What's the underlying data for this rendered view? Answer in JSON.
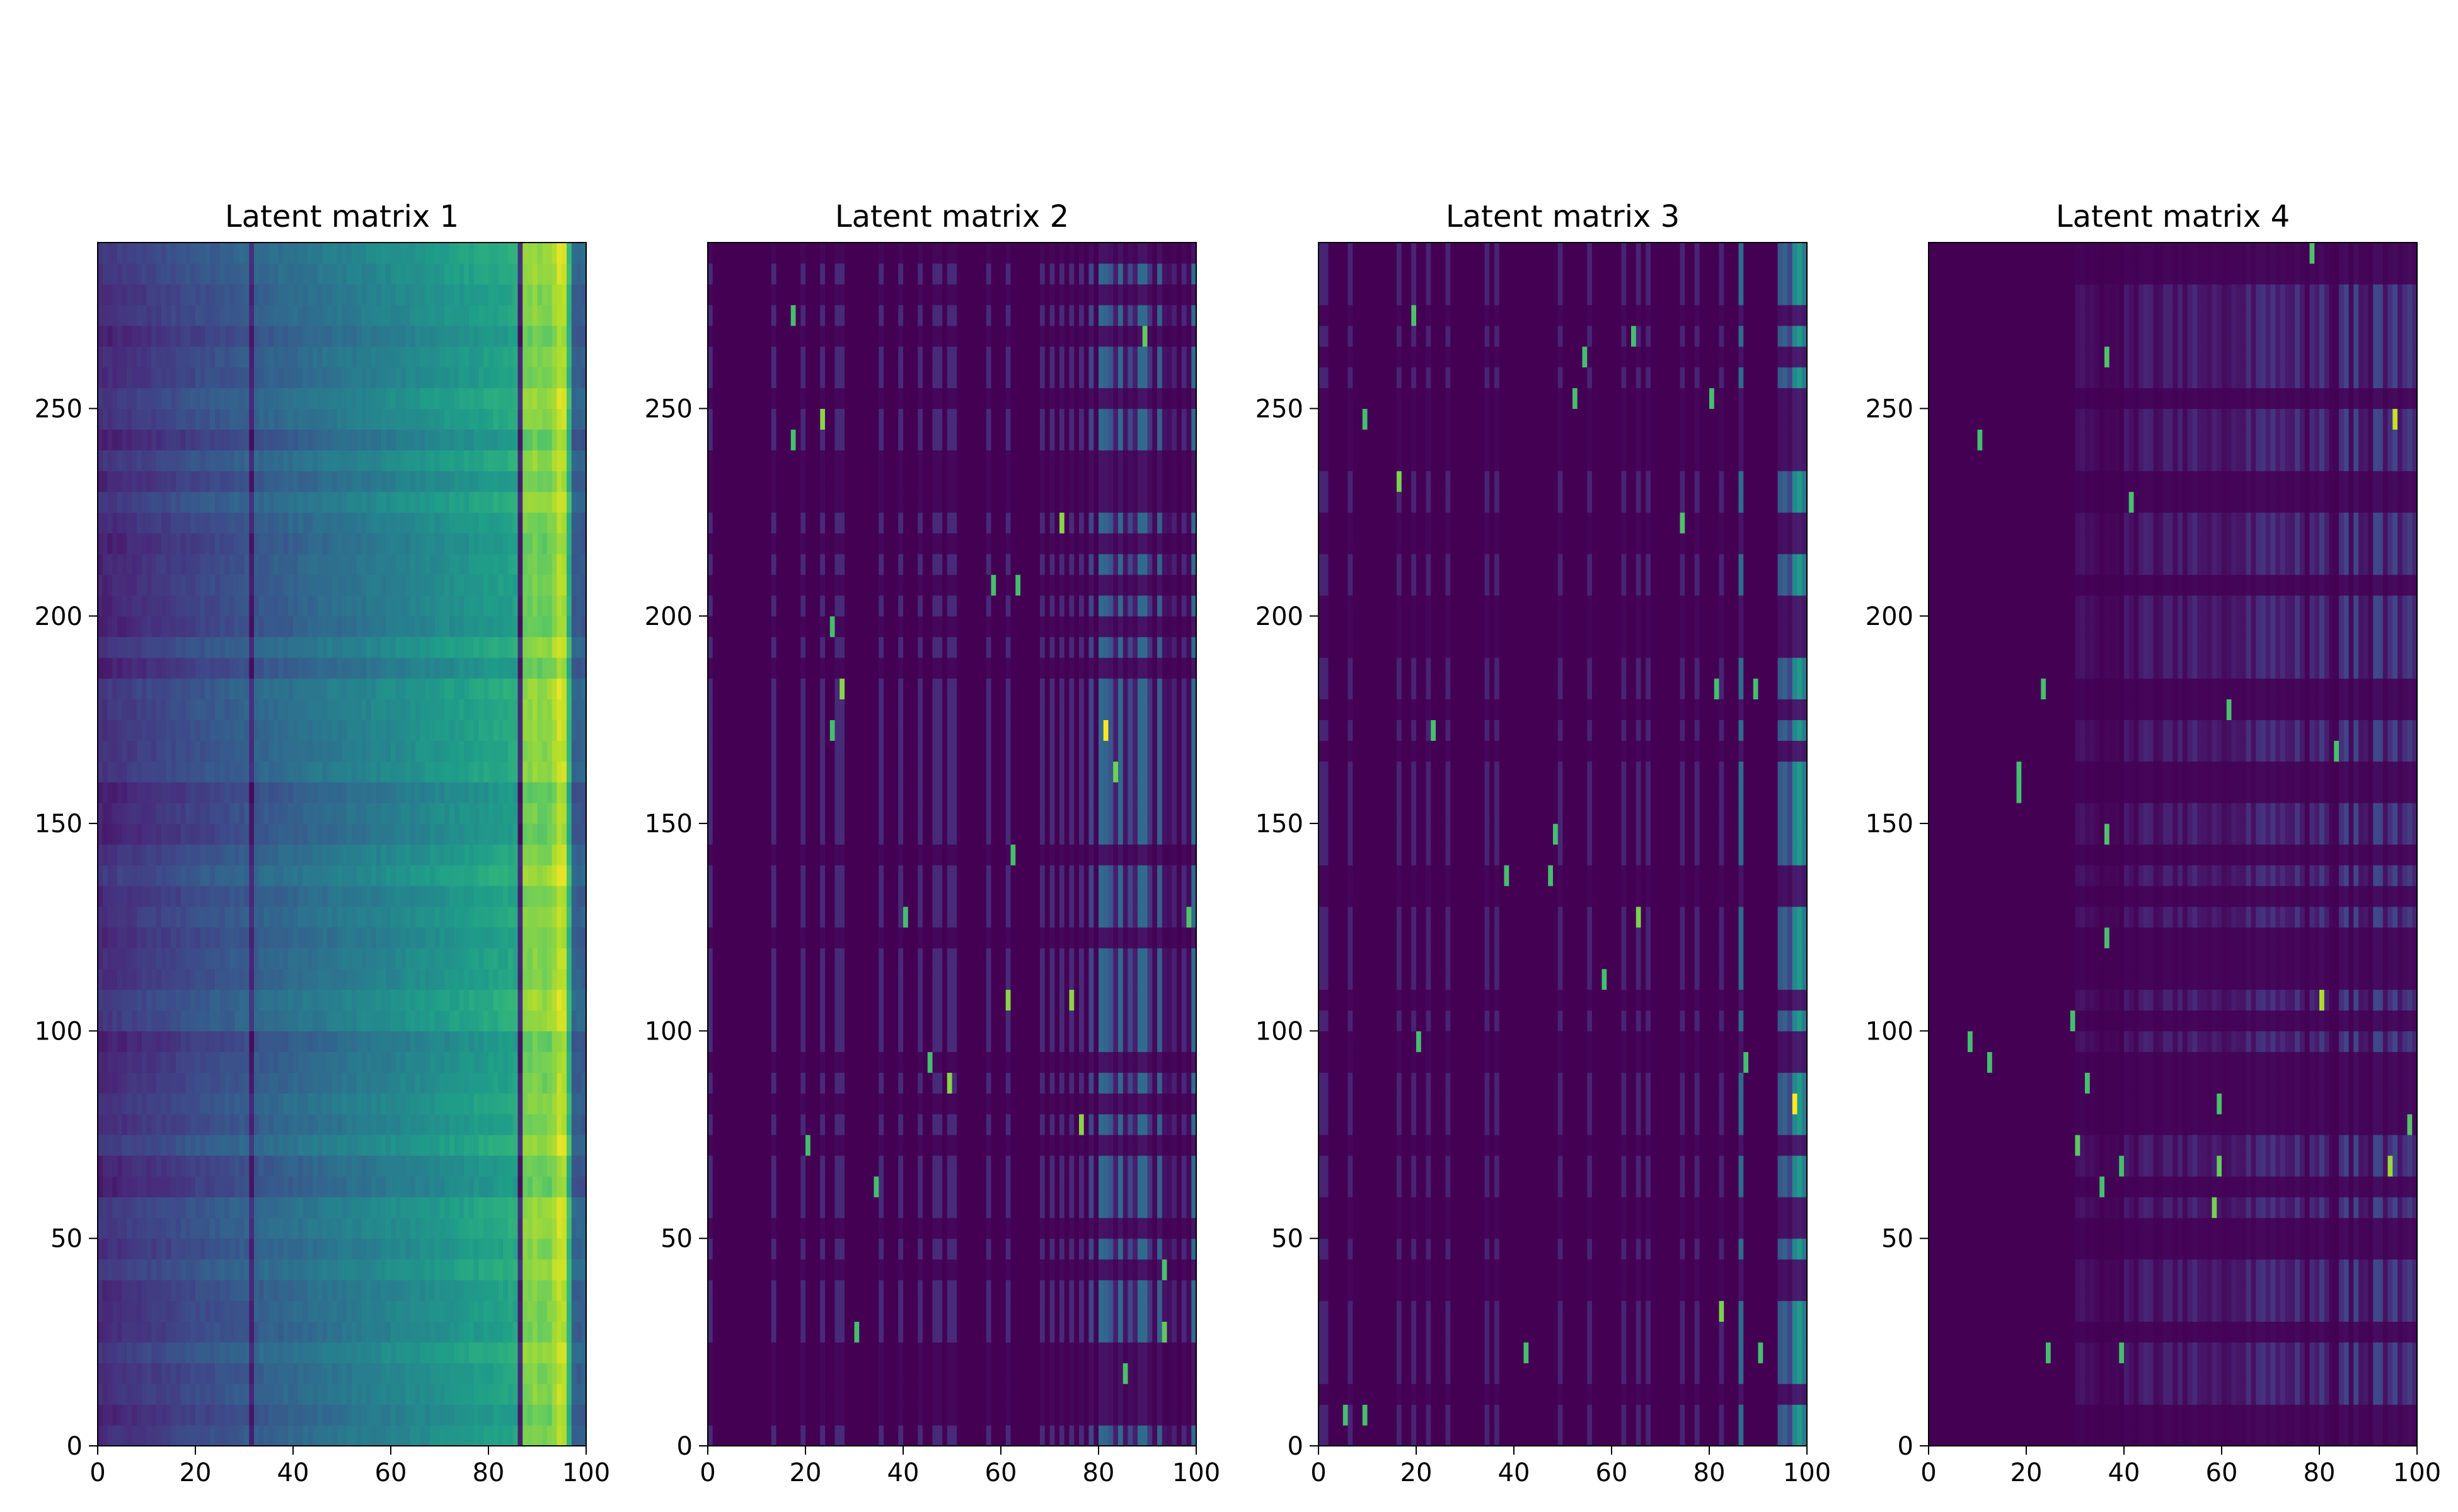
{
  "chart_data": [
    {
      "type": "heatmap",
      "title": "Latent matrix 1",
      "xlim": [
        0,
        100
      ],
      "ylim": [
        0,
        290
      ],
      "xticks": [
        0,
        20,
        40,
        60,
        80,
        100
      ],
      "yticks": [
        0,
        50,
        100,
        150,
        200,
        250
      ],
      "n_cols": 100,
      "n_rows": 290,
      "colormap": "viridis",
      "description_values": "dense matrix; intensity rises from left to right, brightest columns near 88-94, vertical dark lines near columns 31 and 86"
    },
    {
      "type": "heatmap",
      "title": "Latent matrix 2",
      "xlim": [
        0,
        100
      ],
      "ylim": [
        0,
        290
      ],
      "xticks": [
        0,
        20,
        40,
        60,
        80,
        100
      ],
      "yticks": [
        0,
        50,
        100,
        150,
        200,
        250
      ],
      "n_cols": 100,
      "n_rows": 290,
      "colormap": "viridis",
      "description_values": "mostly near zero; sparse activity in columns 80-100, strongest near 95-100"
    },
    {
      "type": "heatmap",
      "title": "Latent matrix 3",
      "xlim": [
        0,
        100
      ],
      "ylim": [
        0,
        290
      ],
      "xticks": [
        0,
        20,
        40,
        60,
        80,
        100
      ],
      "yticks": [
        0,
        50,
        100,
        150,
        200,
        250
      ],
      "n_cols": 100,
      "n_rows": 290,
      "colormap": "viridis",
      "description_values": "mostly near zero; strong values in columns 86 and 94-100"
    },
    {
      "type": "heatmap",
      "title": "Latent matrix 4",
      "xlim": [
        0,
        100
      ],
      "ylim": [
        0,
        290
      ],
      "xticks": [
        0,
        20,
        40,
        60,
        80,
        100
      ],
      "yticks": [
        0,
        50,
        100,
        150,
        200,
        250
      ],
      "n_cols": 100,
      "n_rows": 290,
      "colormap": "viridis",
      "description_values": "mostly near zero; scattered activity increasing to the right, peaks near columns 86-100"
    }
  ]
}
